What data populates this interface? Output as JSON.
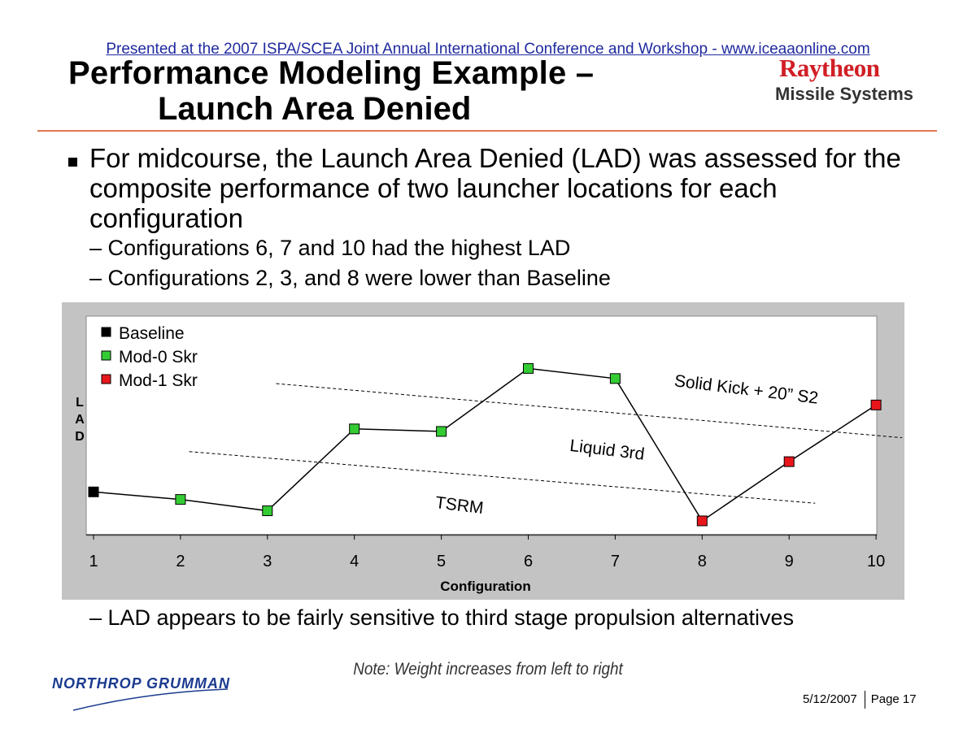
{
  "banner": {
    "text": "Presented at the 2007 ISPA/SCEA Joint Annual International Conference and Workshop - www.iceaaonline.com"
  },
  "title": {
    "line1": "Performance Modeling Example –",
    "line2": "Launch Area Denied"
  },
  "logo": {
    "company": "Raytheon",
    "division": "Missile Systems",
    "color": "#d11f26"
  },
  "bullets": {
    "main": "For midcourse, the Launch Area Denied (LAD) was assessed for the composite performance of two launcher locations for each configuration",
    "sub1": "– Configurations 6, 7 and 10 had the highest LAD",
    "sub2": "– Configurations 2, 3, and 8 were lower than Baseline",
    "sub3": "– LAD appears to be fairly sensitive to third stage propulsion alternatives"
  },
  "note": "Note: Weight increases from left to right",
  "footer": {
    "company_logo": "NORTHROP GRUMMAN",
    "date": "5/12/2007",
    "page": "Page 17"
  },
  "chart_data": {
    "type": "line",
    "xlabel": "Configuration",
    "ylabel": "LAD",
    "categories": [
      "1",
      "2",
      "3",
      "4",
      "5",
      "6",
      "7",
      "8",
      "9",
      "10"
    ],
    "values": [
      0.34,
      0.28,
      0.19,
      0.84,
      0.82,
      1.32,
      1.24,
      0.11,
      0.58,
      1.03
    ],
    "point_series": [
      "Baseline",
      "Mod-0 Skr",
      "Mod-0 Skr",
      "Mod-0 Skr",
      "Mod-0 Skr",
      "Mod-0 Skr",
      "Mod-0 Skr",
      "Mod-1 Skr",
      "Mod-1 Skr",
      "Mod-1 Skr"
    ],
    "ylim": [
      0,
      1.4
    ],
    "grid": false,
    "legend_position": "top-left",
    "legend": [
      {
        "name": "Baseline",
        "color": "#000000"
      },
      {
        "name": "Mod-0 Skr",
        "color": "#33cc33"
      },
      {
        "name": "Mod-1 Skr",
        "color": "#e8161b"
      }
    ],
    "trend_lines": [
      {
        "label": "TSRM",
        "x": [
          2.1,
          9.3
        ],
        "y": [
          0.66,
          0.25
        ]
      },
      {
        "label": "Liquid 3rd",
        "x": [
          3.1,
          10.3
        ],
        "y": [
          1.2,
          0.77
        ]
      }
    ],
    "annotations": [
      {
        "text": "Solid Kick + 20” S2",
        "x": 8.5,
        "y": 1.11
      },
      {
        "text": "Liquid 3rd",
        "x": 6.9,
        "y": 0.63
      },
      {
        "text": "TSRM",
        "x": 5.2,
        "y": 0.19
      }
    ]
  }
}
